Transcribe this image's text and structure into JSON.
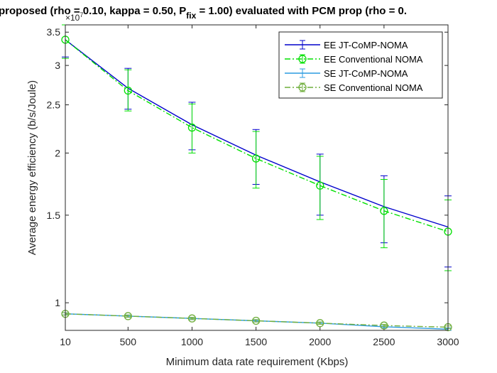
{
  "chart_data": {
    "type": "line",
    "title_main": "proposed (rho = 0.10, kappa = 0.50, P",
    "title_sub": "fix",
    "title_tail": " = 1.00) evaluated with PCM prop (rho = 0.",
    "xlabel": "Minimum data rate requirement (Kbps)",
    "ylabel": "Average energy efficiency (b/s/Joule)",
    "y_multiplier": "×10",
    "y_multiplier_exp": "7",
    "x_ticks": [
      10,
      500,
      1000,
      1500,
      2000,
      2500,
      3000
    ],
    "y_ticks": [
      1,
      1.5,
      2,
      2.5,
      3,
      3.5
    ],
    "y_scale": "log",
    "xlim": [
      10,
      3000
    ],
    "ylim": [
      0.88,
      3.62
    ],
    "x": [
      10,
      500,
      1000,
      1500,
      2000,
      2500,
      3000
    ],
    "legend_position": "top-right",
    "series": [
      {
        "name": "EE JT-CoMP-NOMA",
        "color": "#0000cc",
        "dash": "solid",
        "marker": "none",
        "values": [
          3.38,
          2.7,
          2.28,
          1.98,
          1.75,
          1.56,
          1.42
        ],
        "err_low": [
          3.12,
          2.45,
          2.03,
          1.73,
          1.5,
          1.32,
          1.18
        ],
        "err_high": [
          3.62,
          2.96,
          2.53,
          2.23,
          1.99,
          1.8,
          1.64
        ]
      },
      {
        "name": "EE Conventional NOMA",
        "color": "#00e000",
        "dash": "dashdot",
        "marker": "circle",
        "values": [
          3.38,
          2.67,
          2.25,
          1.95,
          1.72,
          1.53,
          1.39
        ],
        "err_low": [
          3.1,
          2.43,
          2.0,
          1.7,
          1.47,
          1.29,
          1.16
        ],
        "err_high": [
          3.62,
          2.94,
          2.51,
          2.21,
          1.97,
          1.77,
          1.61
        ]
      },
      {
        "name": "SE JT-CoMP-NOMA",
        "color": "#2b9be0",
        "dash": "solid",
        "marker": "none",
        "values": [
          0.95,
          0.94,
          0.93,
          0.92,
          0.91,
          0.895,
          0.885
        ],
        "err_low": [
          0.945,
          0.935,
          0.925,
          0.915,
          0.905,
          0.89,
          0.88
        ],
        "err_high": [
          0.955,
          0.945,
          0.935,
          0.925,
          0.915,
          0.9,
          0.89
        ]
      },
      {
        "name": "SE Conventional NOMA",
        "color": "#6fae3c",
        "dash": "dashdot",
        "marker": "circle",
        "values": [
          0.95,
          0.94,
          0.93,
          0.92,
          0.91,
          0.9,
          0.893
        ],
        "err_low": [
          0.945,
          0.935,
          0.925,
          0.915,
          0.905,
          0.895,
          0.888
        ],
        "err_high": [
          0.955,
          0.945,
          0.935,
          0.925,
          0.915,
          0.905,
          0.898
        ]
      }
    ]
  }
}
